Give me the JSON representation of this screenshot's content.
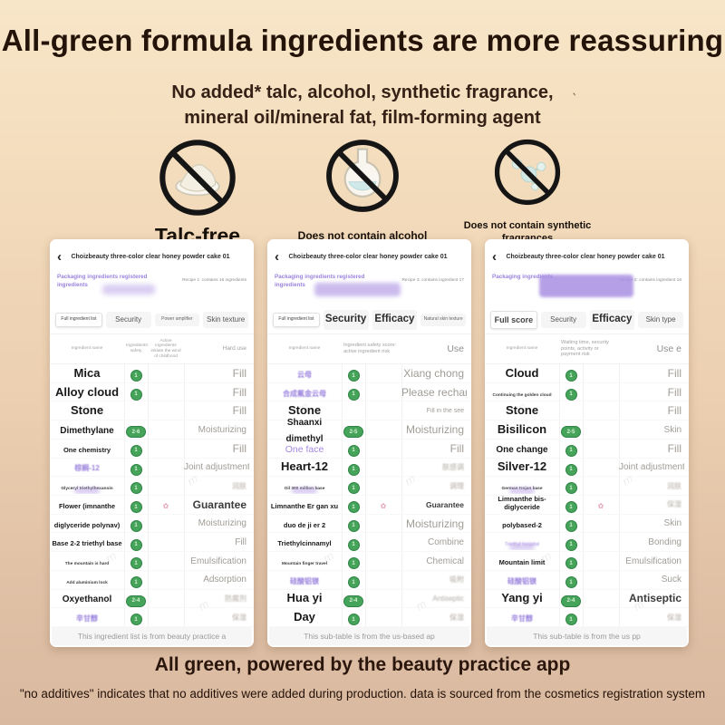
{
  "page": {
    "title": "All-green formula ingredients are more reassuring",
    "subtitle_line1": "No added* talc, alcohol, synthetic fragrance,",
    "subtitle_line2": "mineral oil/mineral fat, film-forming agent",
    "stray_mark": "‵",
    "tagline": "All green, powered by the beauty practice app",
    "footnote": "\"no additives\" indicates that no additives were added during production. data is sourced from the cosmetics registration system",
    "watermark": "m"
  },
  "colors": {
    "background_top": "#f8e6c8",
    "background_bottom": "#d9b99f",
    "title_text": "#231309",
    "accent_purple": "#9b82dd",
    "badge_green": "#46a35a"
  },
  "prohibitions": [
    {
      "icon": "no-talc-icon",
      "label": "Talc-free"
    },
    {
      "icon": "no-alcohol-icon",
      "label": "Does not contain alcohol"
    },
    {
      "icon": "no-synthetic-fragrance-icon",
      "label": "Does not contain synthetic fragrances"
    }
  ],
  "phones": [
    {
      "back_icon": "‹",
      "nav_title": "Choizbeauty three-color clear honey powder cake 01",
      "packaging_label": "Packaging ingredients registered ingredients",
      "packaging_redact": "small",
      "recipe_note": "Recipe 1: contains 16 ingredients",
      "tabs": [
        {
          "label": "Full ingredient list",
          "selected": true,
          "size": "xs"
        },
        {
          "label": "Security",
          "size": "sm"
        },
        {
          "label": "Power amplifier",
          "size": "xs"
        },
        {
          "label": "Skin texture",
          "size": "sm"
        }
      ],
      "columns": [
        "Ingredient name",
        "Ingredients: safety",
        "Active ingredients initiate the wind of childhood",
        "Hard use"
      ],
      "rows": [
        {
          "name": "Mica",
          "name_style": "lg",
          "badge": "1",
          "effect": "Fill",
          "effect_style": "lg"
        },
        {
          "name": "Alloy cloud",
          "name_style": "lg",
          "badge": "1",
          "effect": "Fill",
          "effect_style": "lg"
        },
        {
          "name": "Stone",
          "name_style": "lg",
          "effect": "Fill",
          "effect_style": "lg"
        },
        {
          "name": "Dimethylane",
          "name_style": "md",
          "badge": "2-6",
          "effect": "Moisturizing",
          "effect_style": "md"
        },
        {
          "name": "One chemistry",
          "name_style": "sm",
          "badge": "1",
          "effect": "Fill",
          "effect_style": "lg"
        },
        {
          "name": "棕榈-12",
          "name_style": "purple",
          "badge": "1",
          "effect": "Joint adjustment",
          "effect_style": "md"
        },
        {
          "name": "Glyceryl triethylhexanoin",
          "name_style": "xs",
          "redact": true,
          "badge": "1",
          "effect": "润肤",
          "effect_style": "blur"
        },
        {
          "name": "Flower (imnanthe",
          "name_style": "sm",
          "badge": "1",
          "flower": true,
          "effect": "Guarantee",
          "effect_style": "dark"
        },
        {
          "name": "diglyceride polynav)",
          "name_style": "sm",
          "badge": "1",
          "effect": "Moisturizing",
          "effect_style": "md"
        },
        {
          "name": "Base 2-2 triethyl base",
          "name_style": "sm",
          "badge": "1",
          "effect": "Fill",
          "effect_style": "md"
        },
        {
          "name": "The mountain is hard",
          "name_style": "xs",
          "badge": "1",
          "effect": "Emulsification",
          "effect_style": "md"
        },
        {
          "name": "Add aluminium lock",
          "name_style": "xs",
          "badge": "1",
          "effect": "Adsorption",
          "effect_style": "md"
        },
        {
          "name": "Oxyethanol",
          "name_style": "md",
          "badge": "2-4",
          "effect": "防腐剂",
          "effect_style": "blur"
        },
        {
          "name": "辛甘醇",
          "name_style": "purple",
          "badge": "1",
          "effect": "保湿",
          "effect_style": "blur"
        }
      ],
      "footer": "This ingredient list is from beauty practice a"
    },
    {
      "back_icon": "‹",
      "nav_title": "Choizbeauty three-color clear honey powder cake 01",
      "packaging_label": "Packaging ingredients registered ingredients",
      "packaging_redact": "medium",
      "recipe_note": "Recipe 3: contains ingredient 17",
      "tabs": [
        {
          "label": "Full ingredient list",
          "selected": true,
          "size": "xs"
        },
        {
          "label": "Security",
          "size": "lg"
        },
        {
          "label": "Efficacy",
          "size": "lg"
        },
        {
          "label": "Natural skin texture",
          "size": "xs"
        }
      ],
      "columns": [
        "Ingredient name",
        "Ingredient safety score: active ingredient risk",
        "",
        "Use"
      ],
      "rows": [
        {
          "name": "云母",
          "name_style": "purple",
          "badge": "1",
          "effect": "Xiang chong",
          "effect_style": "lg"
        },
        {
          "name": "合成氟金云母",
          "name_style": "purple",
          "badge": "1",
          "effect": "Please recharge",
          "effect_style": "lg"
        },
        {
          "name": "Stone",
          "name_style": "lg",
          "effect": "Fill in the see",
          "effect_style": "sm"
        },
        {
          "name": "Shaanxi dimethyl",
          "name_style": "md",
          "badge": "2-5",
          "effect": "Moisturizing",
          "effect_style": "lg"
        },
        {
          "name": "One face",
          "name_style": "purple-lg",
          "badge": "1",
          "effect": "Fill",
          "effect_style": "lg"
        },
        {
          "name": "Heart-12",
          "name_style": "lg",
          "badge": "1",
          "effect": "肤感调",
          "effect_style": "blur"
        },
        {
          "name": "Oil 300 million base",
          "name_style": "xs",
          "redact": true,
          "badge": "1",
          "effect": "调理",
          "effect_style": "blur"
        },
        {
          "name": "Limnanthe Er gan xu",
          "name_style": "sm",
          "badge": "1",
          "flower": true,
          "effect": "Guarantee",
          "effect_style": "sm-dark"
        },
        {
          "name": "duo de ji er 2",
          "name_style": "sm",
          "badge": "1",
          "effect": "Moisturizing",
          "effect_style": "lg"
        },
        {
          "name": "Triethylcinnamyl",
          "name_style": "sm",
          "badge": "1",
          "effect": "Combine",
          "effect_style": "md"
        },
        {
          "name": "Mountain finger travel",
          "name_style": "xs",
          "badge": "1",
          "effect": "Chemical",
          "effect_style": "md"
        },
        {
          "name": "硅酸铝镁",
          "name_style": "purple",
          "badge": "1",
          "effect": "吸附",
          "effect_style": "blur"
        },
        {
          "name": "Hua yi",
          "name_style": "lg",
          "badge": "2-4",
          "effect": "Antiseptic",
          "effect_style": "blur"
        },
        {
          "name": "Day",
          "name_style": "lg",
          "badge": "1",
          "effect": "保湿",
          "effect_style": "blur"
        }
      ],
      "footer": "This sub-table is from the us-based ap"
    },
    {
      "back_icon": "‹",
      "nav_title": "Choizbeauty three-color clear honey powder cake 01",
      "packaging_label": "Packaging ingredients",
      "packaging_redact": "large",
      "recipe_note": "Recipe 2: contains ingredient 16",
      "tabs": [
        {
          "label": "Full score",
          "selected": true,
          "size": "md"
        },
        {
          "label": "Security",
          "size": "sm"
        },
        {
          "label": "Efficacy",
          "size": "lg"
        },
        {
          "label": "Skin type",
          "size": "sm"
        }
      ],
      "columns": [
        "Ingredient name",
        "Waiting time, security points, activity or payment risk",
        "",
        "Use e"
      ],
      "rows": [
        {
          "name": "Cloud",
          "name_style": "lg",
          "badge": "1",
          "effect": "Fill",
          "effect_style": "lg"
        },
        {
          "name": "Continuing the golden cloud",
          "name_style": "xs",
          "badge": "1",
          "effect": "Fill",
          "effect_style": "lg"
        },
        {
          "name": "Stone",
          "name_style": "lg",
          "effect": "Fill",
          "effect_style": "lg"
        },
        {
          "name": "Bisilicon",
          "name_style": "lg",
          "badge": "2-5",
          "effect": "Skin",
          "effect_style": "md"
        },
        {
          "name": "One change",
          "name_style": "md",
          "badge": "1",
          "effect": "Fill",
          "effect_style": "lg"
        },
        {
          "name": "Silver-12",
          "name_style": "lg",
          "badge": "1",
          "effect": "Joint adjustment",
          "effect_style": "md"
        },
        {
          "name": "German trojan base",
          "name_style": "xs",
          "redact": true,
          "badge": "1",
          "effect": "润肤",
          "effect_style": "blur"
        },
        {
          "name": "Limnanthe bis-diglyceride",
          "name_style": "sm",
          "badge": "1",
          "flower": true,
          "effect": "保湿",
          "effect_style": "blur"
        },
        {
          "name": "polybased-2",
          "name_style": "sm",
          "badge": "1",
          "effect": "Skin",
          "effect_style": "md"
        },
        {
          "name": "Triethyl hospital",
          "name_style": "purple-xs",
          "redact": true,
          "badge": "1",
          "effect": "Bonding",
          "effect_style": "md"
        },
        {
          "name": "Mountain limit",
          "name_style": "sm",
          "badge": "1",
          "effect": "Emulsification",
          "effect_style": "md"
        },
        {
          "name": "硅酸铝镁",
          "name_style": "purple",
          "badge": "1",
          "effect": "Suck",
          "effect_style": "md"
        },
        {
          "name": "Yang yi",
          "name_style": "lg",
          "badge": "2-4",
          "effect": "Antiseptic",
          "effect_style": "dark"
        },
        {
          "name": "辛甘醇",
          "name_style": "purple",
          "badge": "1",
          "effect": "保湿",
          "effect_style": "blur"
        }
      ],
      "footer": "This sub-table is from the us pp"
    }
  ]
}
